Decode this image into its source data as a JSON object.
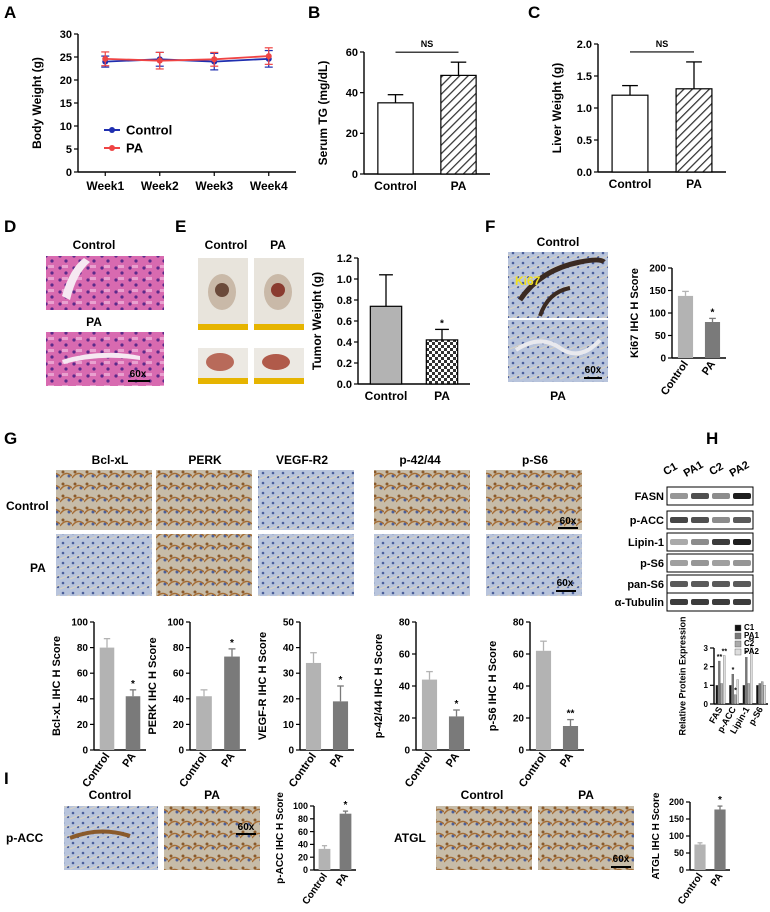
{
  "panel_letters": [
    "A",
    "B",
    "C",
    "D",
    "E",
    "F",
    "G",
    "H",
    "I"
  ],
  "colors": {
    "control": "#1f2fb0",
    "pa": "#ef4444",
    "bar_light": "#b3b3b3",
    "bar_dark": "#7a7a7a",
    "he_pink": "#d86ab0",
    "ihc_blue": "#9fb2d6",
    "brown": "#8a5a2b"
  },
  "panel_d": {
    "label_top": "Control",
    "label_bottom": "PA",
    "scale": "60x"
  },
  "panel_e": {
    "label_left": "Control",
    "label_right": "PA"
  },
  "panel_f": {
    "label_top": "Control",
    "label_bottom": "PA",
    "marker": "Ki67",
    "scale": "60x"
  },
  "panel_g": {
    "stains": [
      "Bcl-xL",
      "PERK",
      "VEGF-R2",
      "p-42/44",
      "p-S6"
    ],
    "row_labels": [
      "Control",
      "PA"
    ],
    "scale": "60x"
  },
  "panel_h": {
    "lanes": [
      "C1",
      "PA1",
      "C2",
      "PA2"
    ],
    "blots": [
      "FASN",
      "p-ACC",
      "Lipin-1",
      "p-S6",
      "pan-S6",
      "α-Tubulin"
    ]
  },
  "panel_i": {
    "left_stain": "p-ACC",
    "right_stain": "ATGL",
    "col_labels": [
      "Control",
      "PA"
    ],
    "scale": "60x"
  },
  "chart_data": [
    {
      "id": "A",
      "type": "line",
      "categories": [
        "Week1",
        "Week2",
        "Week3",
        "Week4"
      ],
      "series": [
        {
          "name": "Control",
          "values": [
            24,
            24.5,
            24,
            24.6
          ],
          "err": [
            1.2,
            1.5,
            1.8,
            1.8
          ],
          "color": "#1f2fb0"
        },
        {
          "name": "PA",
          "values": [
            24.6,
            24.2,
            24.5,
            25.2
          ],
          "err": [
            1.5,
            1.8,
            1.5,
            1.8
          ],
          "color": "#ef4444"
        }
      ],
      "ylabel": "Body Weight (g)",
      "ylim": [
        0,
        30
      ],
      "yticks": [
        0,
        5,
        10,
        15,
        20,
        25,
        30
      ],
      "legend": "center"
    },
    {
      "id": "B",
      "type": "bar",
      "categories": [
        "Control",
        "PA"
      ],
      "values": [
        35,
        48.5
      ],
      "err": [
        4,
        6.5
      ],
      "ylabel": "Serum TG (mg/dL)",
      "ylim": [
        0,
        60
      ],
      "yticks": [
        0,
        20,
        40,
        60
      ],
      "annotation": "NS",
      "patterns": [
        "open",
        "hatch"
      ]
    },
    {
      "id": "C",
      "type": "bar",
      "categories": [
        "Control",
        "PA"
      ],
      "values": [
        1.2,
        1.3
      ],
      "err": [
        0.15,
        0.42
      ],
      "ylabel": "Liver Weight (g)",
      "ylim": [
        0,
        2.0
      ],
      "yticks": [
        "0.0",
        "0.5",
        "1.0",
        "1.5",
        "2.0"
      ],
      "annotation": "NS",
      "patterns": [
        "open",
        "hatch"
      ]
    },
    {
      "id": "E",
      "type": "bar",
      "categories": [
        "Control",
        "PA"
      ],
      "values": [
        0.74,
        0.42
      ],
      "err": [
        0.3,
        0.1
      ],
      "ylabel": "Tumor Weight (g)",
      "ylim": [
        0,
        1.2
      ],
      "yticks": [
        "0.0",
        "0.2",
        "0.4",
        "0.6",
        "0.8",
        "1.0",
        "1.2"
      ],
      "annotation": "*",
      "patterns": [
        "grey",
        "check"
      ]
    },
    {
      "id": "F",
      "type": "bar",
      "categories": [
        "Control",
        "PA"
      ],
      "values": [
        138,
        80
      ],
      "err": [
        10,
        8
      ],
      "ylabel": "Ki67 IHC H Score",
      "ylim": [
        0,
        200
      ],
      "yticks": [
        0,
        50,
        100,
        150,
        200
      ],
      "annotation": "*"
    },
    {
      "id": "G1",
      "type": "bar",
      "categories": [
        "Control",
        "PA"
      ],
      "values": [
        80,
        42
      ],
      "err": [
        7,
        5
      ],
      "ylabel": "Bcl-xL IHC H Score",
      "ylim": [
        0,
        100
      ],
      "yticks": [
        0,
        20,
        40,
        60,
        80,
        100
      ],
      "annotation": "*"
    },
    {
      "id": "G2",
      "type": "bar",
      "categories": [
        "Control",
        "PA"
      ],
      "values": [
        42,
        73
      ],
      "err": [
        5,
        6
      ],
      "ylabel": "PERK IHC H Score",
      "ylim": [
        0,
        100
      ],
      "yticks": [
        0,
        20,
        40,
        60,
        80,
        100
      ],
      "annotation": "*"
    },
    {
      "id": "G3",
      "type": "bar",
      "categories": [
        "Control",
        "PA"
      ],
      "values": [
        34,
        19
      ],
      "err": [
        4,
        6
      ],
      "ylabel": "VEGF-R IHC H Score",
      "ylim": [
        0,
        50
      ],
      "yticks": [
        0,
        10,
        20,
        30,
        40,
        50
      ],
      "annotation": "*"
    },
    {
      "id": "G4",
      "type": "bar",
      "categories": [
        "Control",
        "PA"
      ],
      "values": [
        44,
        21
      ],
      "err": [
        5,
        4
      ],
      "ylabel": "p-42/44 IHC H Score",
      "ylim": [
        0,
        80
      ],
      "yticks": [
        0,
        20,
        40,
        60,
        80
      ],
      "annotation": "*"
    },
    {
      "id": "G5",
      "type": "bar",
      "categories": [
        "Control",
        "PA"
      ],
      "values": [
        62,
        15
      ],
      "err": [
        6,
        4
      ],
      "ylabel": "p-S6 IHC H Score",
      "ylim": [
        0,
        80
      ],
      "yticks": [
        0,
        20,
        40,
        60,
        80
      ],
      "annotation": "**"
    },
    {
      "id": "H",
      "type": "bar",
      "categories": [
        "FAS",
        "p-ACC",
        "Lipin-1",
        "p-S6"
      ],
      "series": [
        {
          "name": "C1",
          "values": [
            1,
            1,
            1,
            1
          ],
          "color": "#111111"
        },
        {
          "name": "PA1",
          "values": [
            2.3,
            1.6,
            2.5,
            1.1
          ],
          "color": "#777777"
        },
        {
          "name": "C2",
          "values": [
            1.1,
            0.5,
            1.1,
            1.2
          ],
          "color": "#aaaaaa"
        },
        {
          "name": "PA2",
          "values": [
            2.6,
            1.3,
            3.2,
            1.0
          ],
          "color": "#dddddd"
        }
      ],
      "ylabel": "Relative Protein Expression",
      "ylim": [
        0,
        3
      ],
      "yticks": [
        0,
        1,
        2,
        3
      ],
      "annotations": [
        "**",
        "**",
        "*",
        "*",
        "**",
        "*"
      ]
    },
    {
      "id": "I1",
      "type": "bar",
      "categories": [
        "Control",
        "PA"
      ],
      "values": [
        33,
        88
      ],
      "err": [
        5,
        4
      ],
      "ylabel": "p-ACC IHC H Score",
      "ylim": [
        0,
        100
      ],
      "yticks": [
        0,
        20,
        40,
        60,
        80,
        100
      ],
      "annotation": "*"
    },
    {
      "id": "I2",
      "type": "bar",
      "categories": [
        "Control",
        "PA"
      ],
      "values": [
        75,
        178
      ],
      "err": [
        5,
        10
      ],
      "ylabel": "ATGL IHC H Score",
      "ylim": [
        0,
        200
      ],
      "yticks": [
        0,
        50,
        100,
        150,
        200
      ],
      "annotation": "*"
    }
  ]
}
